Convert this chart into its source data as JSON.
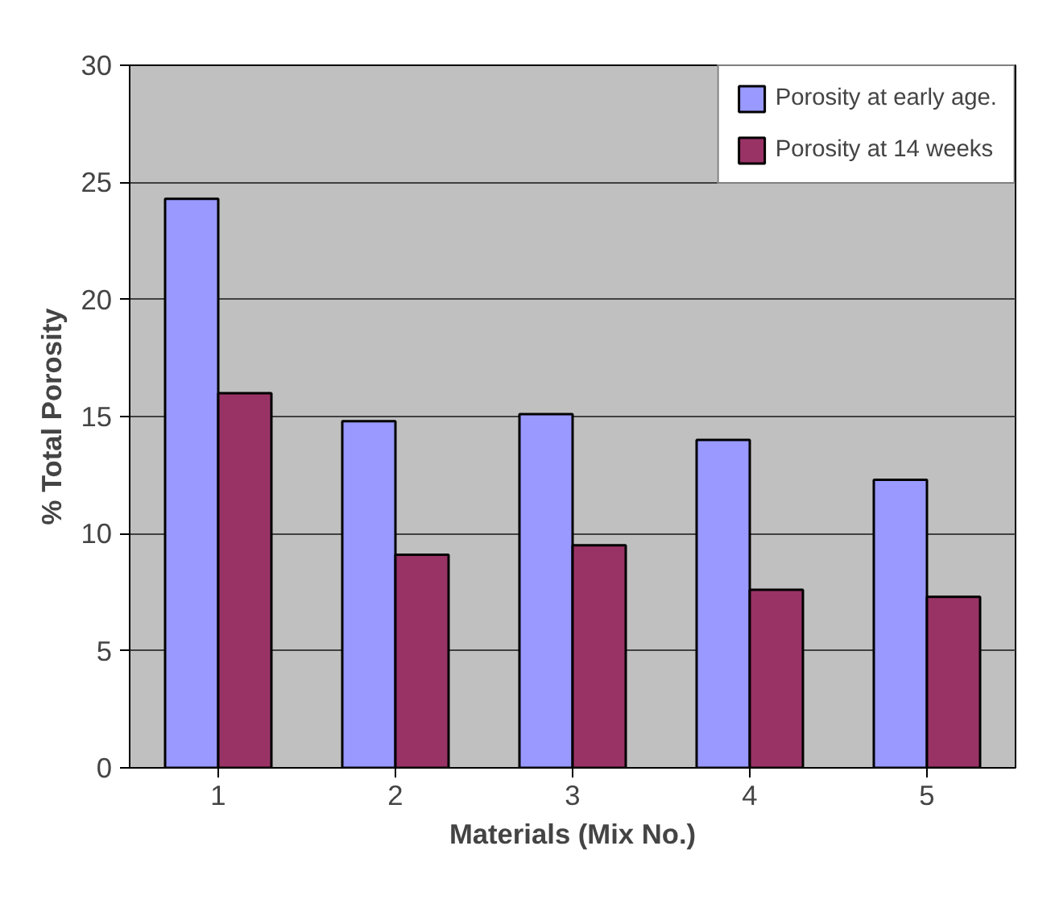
{
  "chart_data": {
    "type": "bar",
    "xlabel": "Materials (Mix No.)",
    "ylabel": "% Total Porosity",
    "categories": [
      "1",
      "2",
      "3",
      "4",
      "5"
    ],
    "series": [
      {
        "name": "Porosity at early age.",
        "color": "#9999ff",
        "values": [
          24.3,
          14.8,
          15.1,
          14.0,
          12.3
        ]
      },
      {
        "name": "Porosity at 14 weeks",
        "color": "#993366",
        "values": [
          16.0,
          9.1,
          9.5,
          7.6,
          7.3
        ]
      }
    ],
    "ylim": [
      0,
      30
    ],
    "yticks": [
      0,
      5,
      10,
      15,
      20,
      25,
      30
    ],
    "grid": "y",
    "legend": "top right"
  }
}
